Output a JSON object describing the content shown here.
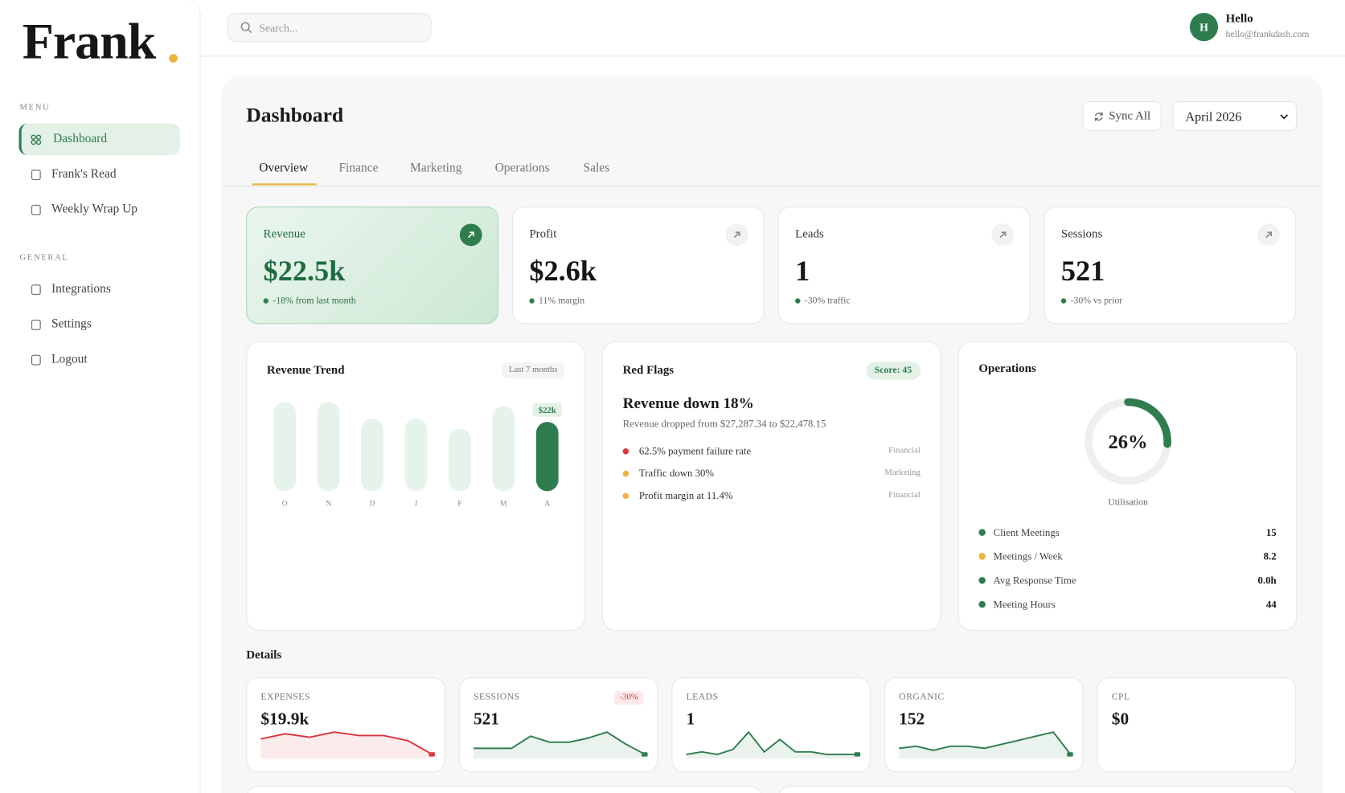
{
  "sidebar": {
    "logo": "Frank",
    "menu_label": "MENU",
    "menu": [
      "Dashboard",
      "Frank's Read",
      "Weekly Wrap Up"
    ],
    "general_label": "GENERAL",
    "general": [
      "Integrations",
      "Settings",
      "Logout"
    ]
  },
  "header": {
    "search_placeholder": "Search...",
    "avatar_initial": "H",
    "greeting": "Hello",
    "email": "hello@frankdash.com"
  },
  "dashboard": {
    "title": "Dashboard",
    "sync_button": "Sync All",
    "period": "April 2026",
    "tabs": [
      "Overview",
      "Finance",
      "Marketing",
      "Operations",
      "Sales"
    ]
  },
  "kpis": [
    {
      "label": "Revenue",
      "value": "$22.5k",
      "note": "-18% from last month"
    },
    {
      "label": "Profit",
      "value": "$2.6k",
      "note": "11% margin"
    },
    {
      "label": "Leads",
      "value": "1",
      "note": "-30% traffic"
    },
    {
      "label": "Sessions",
      "value": "521",
      "note": "-30% vs prior"
    }
  ],
  "revenue_trend": {
    "title": "Revenue Trend",
    "range_label": "Last 7 months",
    "chart_data": {
      "type": "bar",
      "categories": [
        "O",
        "N",
        "D",
        "J",
        "F",
        "M",
        "A"
      ],
      "values": [
        28.3,
        28.3,
        23.1,
        23.1,
        19.8,
        27,
        22
      ],
      "value_labels": [
        null,
        null,
        null,
        null,
        null,
        null,
        "$22k"
      ],
      "color": "#e6f3ea",
      "highlight_color": "#2f7d4f"
    }
  },
  "red_flags": {
    "title": "Red Flags",
    "score": "Score: 45",
    "headline": "Revenue down 18%",
    "description": "Revenue dropped from $27,287.34 to $22,478.15",
    "items": [
      {
        "text": "62.5% payment failure rate",
        "tag": "Financial",
        "color": "#d9363e"
      },
      {
        "text": "Traffic down 30%",
        "tag": "Marketing",
        "color": "#eab53a"
      },
      {
        "text": "Profit margin at 11.4%",
        "tag": "Financial",
        "color": "#eab53a"
      }
    ]
  },
  "operations": {
    "title": "Operations",
    "chart_data": {
      "type": "donut",
      "value": 26,
      "value_label": "26%",
      "color": "#2f7d4f",
      "track_color": "#efefef"
    },
    "caption": "Utilisation",
    "metrics": [
      {
        "name": "Client Meetings",
        "value": "15",
        "color": "#2f7d4f"
      },
      {
        "name": "Meetings / Week",
        "value": "8.2",
        "color": "#eab53a"
      },
      {
        "name": "Avg Response Time",
        "value": "0.0h",
        "color": "#2f7d4f"
      },
      {
        "name": "Meeting Hours",
        "value": "44",
        "color": "#2f7d4f"
      }
    ]
  },
  "details": {
    "title": "Details",
    "cards": [
      {
        "label": "EXPENSES",
        "value": "$19.9k",
        "color": "#d9363e",
        "values": [
          16,
          19,
          17,
          20,
          18,
          18,
          15,
          7
        ]
      },
      {
        "label": "SESSIONS",
        "value": "521",
        "badge": "-30%",
        "color": "#2f7d4f",
        "values": [
          6,
          6,
          6,
          12,
          9,
          9,
          11,
          14,
          8,
          3
        ]
      },
      {
        "label": "LEADS",
        "value": "1",
        "color": "#2f7d4f",
        "values": [
          1,
          2,
          1,
          3,
          10,
          2,
          7,
          2,
          2,
          1,
          1,
          1
        ]
      },
      {
        "label": "ORGANIC",
        "value": "152",
        "color": "#2f7d4f",
        "values": [
          4,
          5,
          3,
          5,
          5,
          4,
          6,
          8,
          10,
          12,
          1
        ]
      },
      {
        "label": "CPL",
        "value": "$0"
      }
    ]
  }
}
